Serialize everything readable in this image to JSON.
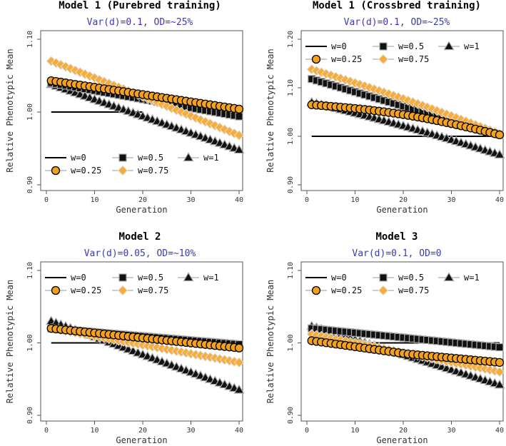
{
  "series_styles": {
    "w=0": {
      "marker": "line",
      "fill": "#000000"
    },
    "w=0.25": {
      "marker": "circle",
      "fill": "#f4a21e"
    },
    "w=0.5": {
      "marker": "square",
      "fill": "#111111"
    },
    "w=0.75": {
      "marker": "diamond",
      "fill": "#f6ad3a"
    },
    "w=1": {
      "marker": "triangle",
      "fill": "#111111"
    }
  },
  "chart_data": [
    {
      "type": "line",
      "title": "Model 1 (Purebred training)",
      "subtitle": "Var(d)=0.1, OD=~25%",
      "xlabel": "Generation",
      "ylabel": "Relative Phenotypic Mean",
      "xlim": [
        0,
        40
      ],
      "ylim": [
        0.9,
        1.1
      ],
      "xticks": [
        "0",
        "10",
        "20",
        "30",
        "40"
      ],
      "yticks": [
        "0.90",
        "1.00",
        "1.10"
      ],
      "legend": {
        "position": "bottom-left",
        "labels": [
          "w=0",
          "w=0.5",
          "w=1",
          "w=0.25",
          "w=0.75"
        ]
      },
      "series": [
        {
          "name": "w=0",
          "x_range": [
            1,
            20
          ],
          "start": 1.0,
          "end": 1.0,
          "bump": 0
        },
        {
          "name": "w=0.25",
          "x_range": [
            1,
            40
          ],
          "start": 1.043,
          "end": 1.004,
          "bump": 0
        },
        {
          "name": "w=0.5",
          "x_range": [
            1,
            40
          ],
          "start": 1.04,
          "end": 0.994,
          "bump": 0
        },
        {
          "name": "w=0.75",
          "x_range": [
            1,
            40
          ],
          "start": 1.07,
          "mid": 1.02,
          "end": 0.968,
          "bump": 0
        },
        {
          "name": "w=1",
          "x_range": [
            1,
            40
          ],
          "start": 1.038,
          "end": 0.948,
          "bump": 0
        }
      ]
    },
    {
      "type": "line",
      "title": "Model 1 (Crossbred training)",
      "subtitle": "Var(d)=0.1, OD=~25%",
      "xlabel": "Generation",
      "ylabel": "Relative Phenotypic Mean",
      "xlim": [
        0,
        40
      ],
      "ylim": [
        0.9,
        1.2
      ],
      "xticks": [
        "0",
        "10",
        "20",
        "30",
        "40"
      ],
      "yticks": [
        "0.90",
        "1.00",
        "1.10",
        "1.20"
      ],
      "legend": {
        "position": "top-left",
        "labels": [
          "w=0",
          "w=0.5",
          "w=1",
          "w=0.25",
          "w=0.75"
        ]
      },
      "series": [
        {
          "name": "w=0",
          "x_range": [
            1,
            40
          ],
          "start": 1.0,
          "end": 1.0,
          "bump": 0
        },
        {
          "name": "w=0.25",
          "x_range": [
            1,
            40
          ],
          "start": 1.065,
          "end": 1.003,
          "bump": 0.01
        },
        {
          "name": "w=0.5",
          "x_range": [
            1,
            40
          ],
          "start": 1.118,
          "end": 1.003,
          "bump": 0
        },
        {
          "name": "w=0.75",
          "x_range": [
            1,
            40
          ],
          "start": 1.138,
          "end": 1.005,
          "bump": 0.004
        },
        {
          "name": "w=1",
          "x_range": [
            1,
            40
          ],
          "start": 1.07,
          "end": 0.962,
          "bump": 0.004
        }
      ]
    },
    {
      "type": "line",
      "title": "Model 2",
      "subtitle": "Var(d)=0.05, OD=~10%",
      "xlabel": "Generation",
      "ylabel": "Relative Phenotypic Mean",
      "xlim": [
        0,
        40
      ],
      "ylim": [
        0.9,
        1.1
      ],
      "xticks": [
        "0",
        "10",
        "20",
        "30",
        "40"
      ],
      "yticks": [
        "0.90",
        "1.00",
        "1.10"
      ],
      "legend": {
        "position": "top-left",
        "labels": [
          "w=0",
          "w=0.5",
          "w=1",
          "w=0.25",
          "w=0.75"
        ]
      },
      "series": [
        {
          "name": "w=0",
          "x_range": [
            1,
            20
          ],
          "start": 1.0,
          "end": 1.0,
          "bump": 0
        },
        {
          "name": "w=0.25",
          "x_range": [
            1,
            40
          ],
          "start": 1.02,
          "end": 0.993,
          "bump": 0
        },
        {
          "name": "w=0.5",
          "x_range": [
            1,
            40
          ],
          "start": 1.02,
          "end": 0.998,
          "bump": 0
        },
        {
          "name": "w=0.75",
          "x_range": [
            1,
            40
          ],
          "start": 1.02,
          "end": 0.973,
          "bump": 0
        },
        {
          "name": "w=1",
          "x_range": [
            1,
            40
          ],
          "start": 1.03,
          "end": 0.935,
          "bump": 0
        }
      ]
    },
    {
      "type": "line",
      "title": "Model 3",
      "subtitle": "Var(d)=0.1, OD=0",
      "xlabel": "Generation",
      "ylabel": "Relative Phenotypic Mean",
      "xlim": [
        0,
        40
      ],
      "ylim": [
        0.9,
        1.1
      ],
      "xticks": [
        "0",
        "10",
        "20",
        "30",
        "40"
      ],
      "yticks": [
        "0.90",
        "1.00",
        "1.10"
      ],
      "legend": {
        "position": "top-left",
        "labels": [
          "w=0",
          "w=0.5",
          "w=1",
          "w=0.25",
          "w=0.75"
        ]
      },
      "series": [
        {
          "name": "w=0",
          "x_range": [
            1,
            40
          ],
          "start": 1.0,
          "end": 1.0,
          "bump": 0
        },
        {
          "name": "w=0.25",
          "x_range": [
            1,
            40
          ],
          "start": 1.003,
          "mid": 0.985,
          "end": 0.973,
          "bump": 0
        },
        {
          "name": "w=0.5",
          "x_range": [
            1,
            40
          ],
          "start": 1.02,
          "end": 0.994,
          "bump": 0
        },
        {
          "name": "w=0.75",
          "x_range": [
            1,
            40
          ],
          "start": 1.012,
          "end": 0.96,
          "bump": 0
        },
        {
          "name": "w=1",
          "x_range": [
            1,
            40
          ],
          "start": 1.023,
          "end": 0.942,
          "bump": 0
        }
      ]
    }
  ]
}
